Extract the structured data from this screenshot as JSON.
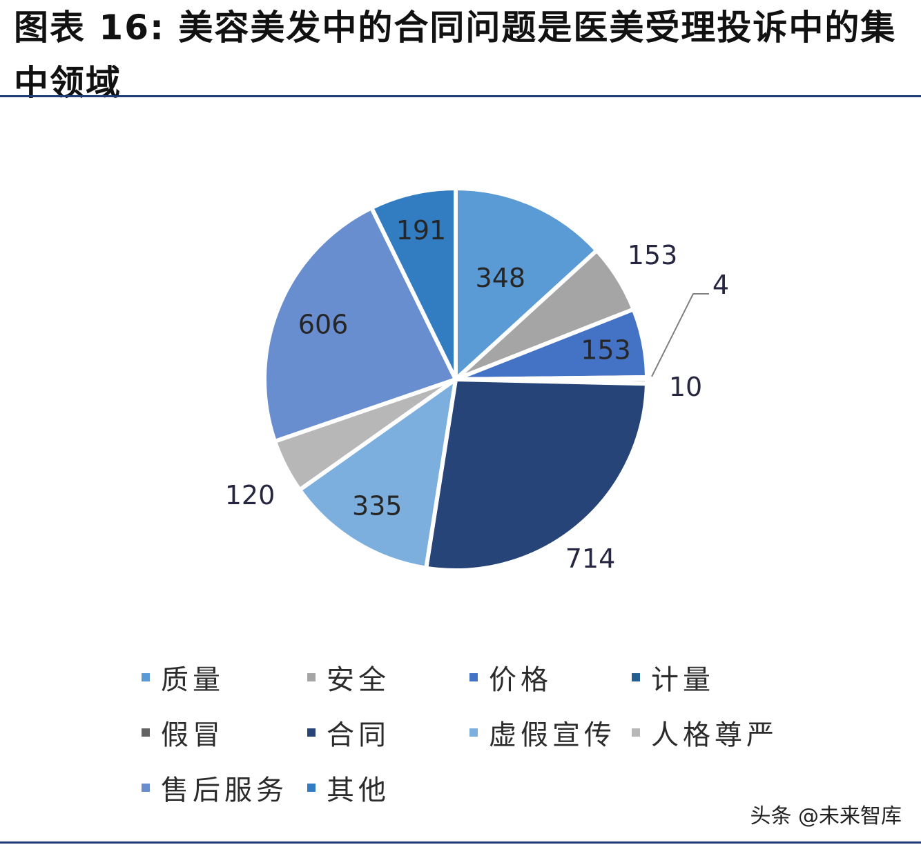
{
  "header": {
    "title": "图表 16: 美容美发中的合同问题是医美受理投诉中的集中领域"
  },
  "chart_data": {
    "type": "pie",
    "title": "",
    "slices": [
      {
        "name": "质量",
        "value": 348,
        "color": "#5b9bd5"
      },
      {
        "name": "安全",
        "value": 153,
        "color": "#a5a5a5"
      },
      {
        "name": "价格",
        "value": 153,
        "color": "#4472c4"
      },
      {
        "name": "计量",
        "value": 4,
        "color": "#255e91"
      },
      {
        "name": "假冒",
        "value": 10,
        "color": "#636363"
      },
      {
        "name": "合同",
        "value": 714,
        "color": "#264478"
      },
      {
        "name": "虚假宣传",
        "value": 335,
        "color": "#7cafdd"
      },
      {
        "name": "人格尊严",
        "value": 120,
        "color": "#b7b7b7"
      },
      {
        "name": "售后服务",
        "value": 606,
        "color": "#698ed0"
      },
      {
        "name": "其他",
        "value": 191,
        "color": "#327dc2"
      }
    ],
    "legend_position": "bottom"
  },
  "watermark": "头条 @未来智库"
}
